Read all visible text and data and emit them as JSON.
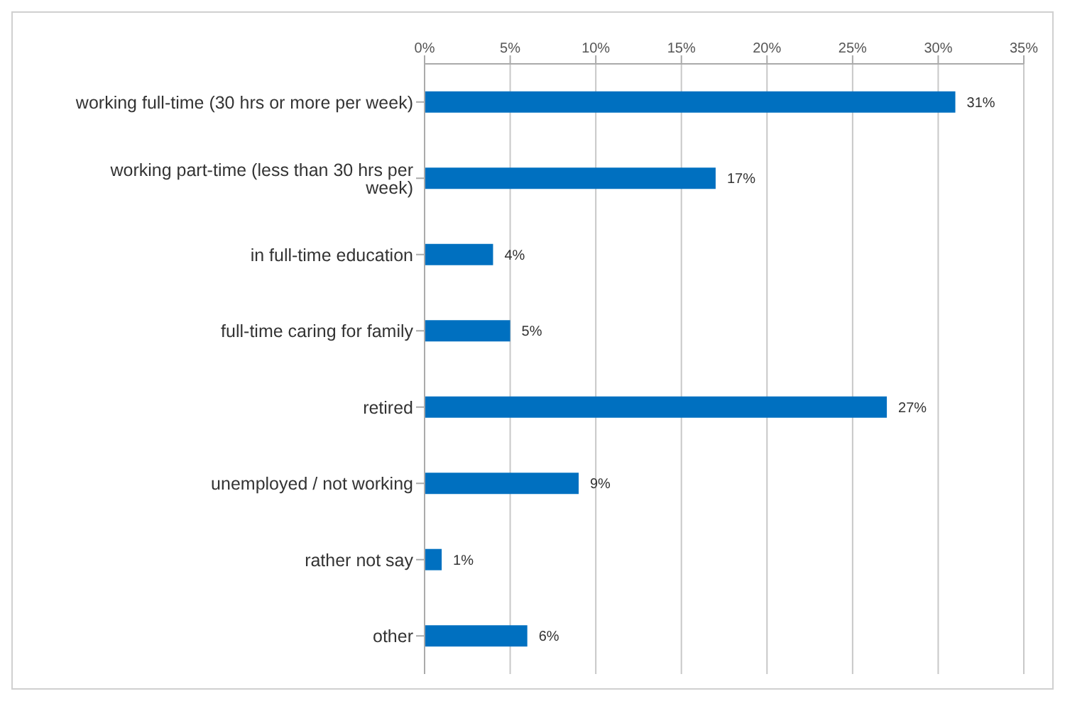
{
  "chart_data": {
    "type": "bar",
    "orientation": "horizontal",
    "categories": [
      "working full-time (30 hrs or more per week)",
      "working part-time (less than 30 hrs per week)",
      "in full-time education",
      "full-time caring for family",
      "retired",
      "unemployed / not working",
      "rather not say",
      "other"
    ],
    "values": [
      31,
      17,
      4,
      5,
      27,
      9,
      1,
      6
    ],
    "value_labels": [
      "31%",
      "17%",
      "4%",
      "5%",
      "27%",
      "9%",
      "1%",
      "6%"
    ],
    "color": "#0070c0",
    "xlim": [
      0,
      35
    ],
    "xticks": [
      {
        "value": 0,
        "label": "0%"
      },
      {
        "value": 5,
        "label": "5%"
      },
      {
        "value": 10,
        "label": "10%"
      },
      {
        "value": 15,
        "label": "15%"
      },
      {
        "value": 20,
        "label": "20%"
      },
      {
        "value": 25,
        "label": "25%"
      },
      {
        "value": 30,
        "label": "30%"
      },
      {
        "value": 35,
        "label": "35%"
      }
    ],
    "grid": "x"
  }
}
